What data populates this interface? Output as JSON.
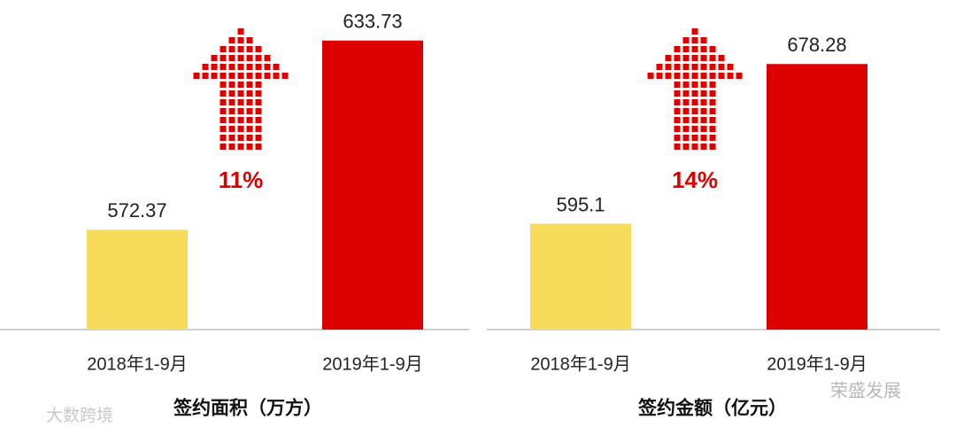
{
  "chart_data": [
    {
      "type": "bar",
      "x_label": "签约面积（万方）",
      "categories": [
        "2018年1-9月",
        "2019年1-9月"
      ],
      "values": [
        572.37,
        633.73
      ],
      "colors": [
        "#f7dc5b",
        "#dd0000"
      ],
      "ylim": [
        540,
        644
      ],
      "annotation": "11%"
    },
    {
      "type": "bar",
      "x_label": "签约金额（亿元）",
      "categories": [
        "2018年1-9月",
        "2019年1-9月"
      ],
      "values": [
        595.1,
        678.28
      ],
      "colors": [
        "#f7dc5b",
        "#dd0000"
      ],
      "ylim": [
        540,
        707
      ],
      "annotation": "14%"
    }
  ],
  "watermarks": [
    "大数跨境",
    "荣盛发展"
  ]
}
